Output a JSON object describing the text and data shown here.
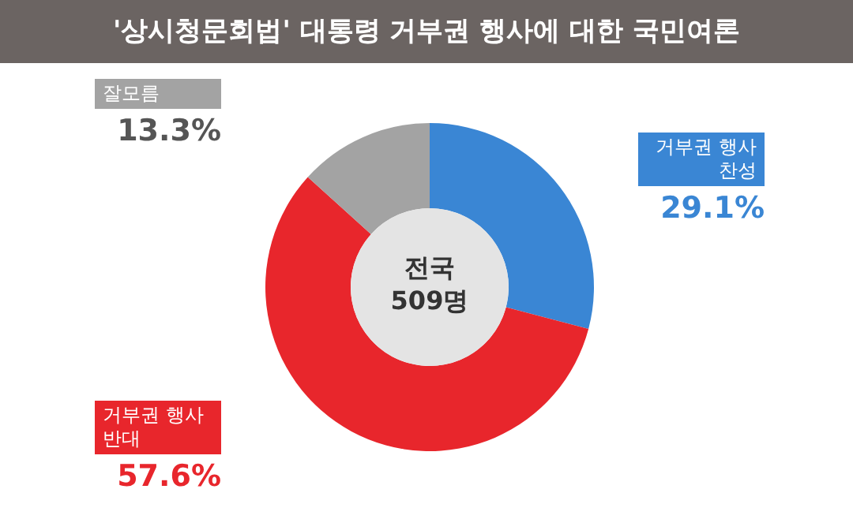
{
  "chart_data": {
    "type": "donut",
    "title": "'상시청문회법' 대통령 거부권 행사에 대한 국민여론",
    "categories": [
      "거부권 행사 찬성",
      "거부권 행사 반대",
      "잘모름"
    ],
    "values": [
      29.1,
      57.6,
      13.3
    ],
    "colors": [
      "#3a86d4",
      "#e8262c",
      "#a3a3a3"
    ],
    "value_labels": [
      "29.1%",
      "57.6%",
      "13.3%"
    ],
    "annotations": [
      "전국",
      "509명"
    ]
  }
}
